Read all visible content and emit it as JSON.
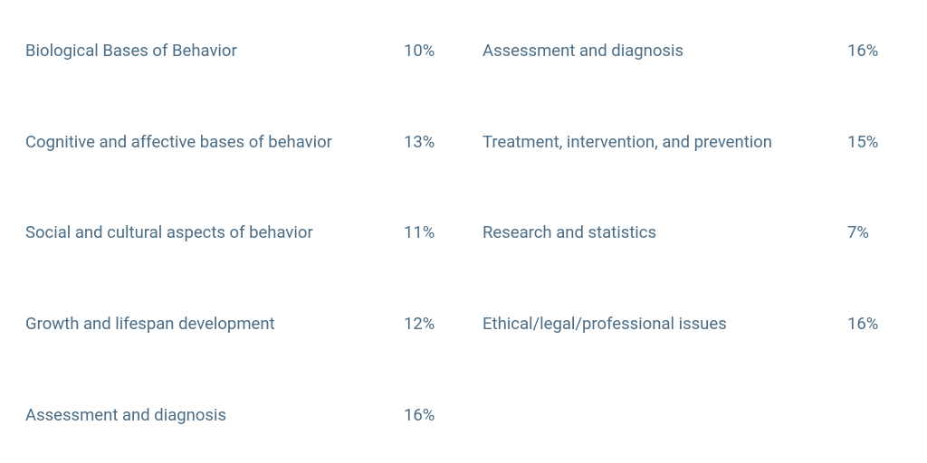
{
  "columns": [
    {
      "rows": [
        {
          "topic": "Biological Bases of Behavior",
          "weight": "10%"
        },
        {
          "topic": "Cognitive and affective bases of behavior",
          "weight": "13%"
        },
        {
          "topic": "Social and cultural aspects of behavior",
          "weight": "11%"
        },
        {
          "topic": "Growth and lifespan development",
          "weight": "12%"
        },
        {
          "topic": "Assessment and diagnosis",
          "weight": "16%"
        }
      ]
    },
    {
      "rows": [
        {
          "topic": "Assessment and diagnosis",
          "weight": "16%"
        },
        {
          "topic": "Treatment, intervention, and prevention",
          "weight": "15%"
        },
        {
          "topic": "Research and statistics",
          "weight": "7%"
        },
        {
          "topic": "Ethical/legal/professional issues",
          "weight": "16%"
        }
      ]
    }
  ]
}
